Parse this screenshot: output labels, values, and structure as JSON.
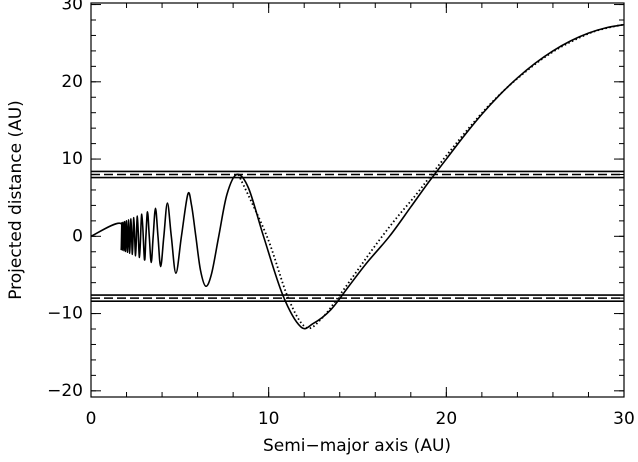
{
  "chart_data": {
    "type": "line",
    "xlabel": "Semi−major axis (AU)",
    "ylabel": "Projected distance (AU)",
    "xlim": [
      0,
      30
    ],
    "ylim": [
      -20.8,
      30.2
    ],
    "xticks": [
      0,
      10,
      20,
      30
    ],
    "yticks": [
      {
        "value": -20,
        "label": "−20"
      },
      {
        "value": -10,
        "label": "−10"
      },
      0,
      10,
      20,
      30
    ],
    "minor_per_major": 5,
    "band_lines": [
      8.4,
      7.6,
      -7.6,
      -8.4
    ],
    "dashed_lines": [
      8,
      -8
    ],
    "series": [
      {
        "style": "solid",
        "color": "#000000",
        "x": [
          0,
          1.67,
          1.7,
          1.74,
          1.77,
          1.81,
          1.86,
          1.9,
          1.95,
          2.0,
          2.06,
          2.12,
          2.18,
          2.25,
          2.33,
          2.41,
          2.51,
          2.61,
          2.73,
          2.86,
          3.01,
          3.09,
          3.18,
          3.28,
          3.39,
          3.5,
          3.63,
          3.77,
          3.92,
          4.1,
          4.3,
          4.52,
          4.78,
          5.09,
          5.45,
          5.66,
          5.9,
          6.16,
          6.46,
          6.79,
          7.19,
          7.65,
          8.2,
          8.86,
          9.71,
          10.8,
          11.8,
          12.5,
          13.5,
          14.5,
          15.5,
          16.8,
          18,
          19,
          20,
          21,
          22,
          23,
          24,
          25,
          26,
          27,
          28,
          29,
          30
        ],
        "values": [
          0,
          1.67,
          -1.7,
          1.74,
          -1.77,
          1.81,
          -1.86,
          1.9,
          -1.95,
          2.0,
          -2.06,
          2.12,
          -2.18,
          2.25,
          -2.33,
          2.41,
          -2.51,
          2.61,
          -2.73,
          2.86,
          -3.01,
          0,
          3.18,
          0,
          -3.39,
          0,
          3.63,
          0,
          -3.92,
          0,
          4.3,
          0,
          -4.78,
          0,
          5.45,
          4.0,
          0,
          -4.36,
          -6.46,
          -4.8,
          0,
          5.41,
          8.0,
          6.27,
          0,
          -7.64,
          -11.7,
          -11.3,
          -9.5,
          -6.5,
          -3.5,
          0,
          3.8,
          7,
          10,
          13,
          15.8,
          18.3,
          20.5,
          22.4,
          24,
          25.3,
          26.3,
          27,
          27.4
        ]
      },
      {
        "style": "dotted",
        "color": "#000000",
        "x": [
          8.3,
          9.9,
          11.1,
          12.1,
          13.0,
          14.0,
          15.0,
          16.0,
          17.1,
          18.3,
          19.3,
          20.3,
          21.3,
          22.3,
          23.3,
          24.3,
          25.3,
          26.3,
          27.3,
          28.3,
          29.3,
          30
        ],
        "values": [
          8,
          0,
          -8,
          -11.8,
          -10.6,
          -7.6,
          -4.4,
          -1.2,
          2.1,
          5.4,
          8.4,
          11.3,
          14.1,
          16.7,
          19.0,
          21.0,
          22.8,
          24.3,
          25.5,
          26.5,
          27.1,
          27.4
        ]
      }
    ]
  }
}
